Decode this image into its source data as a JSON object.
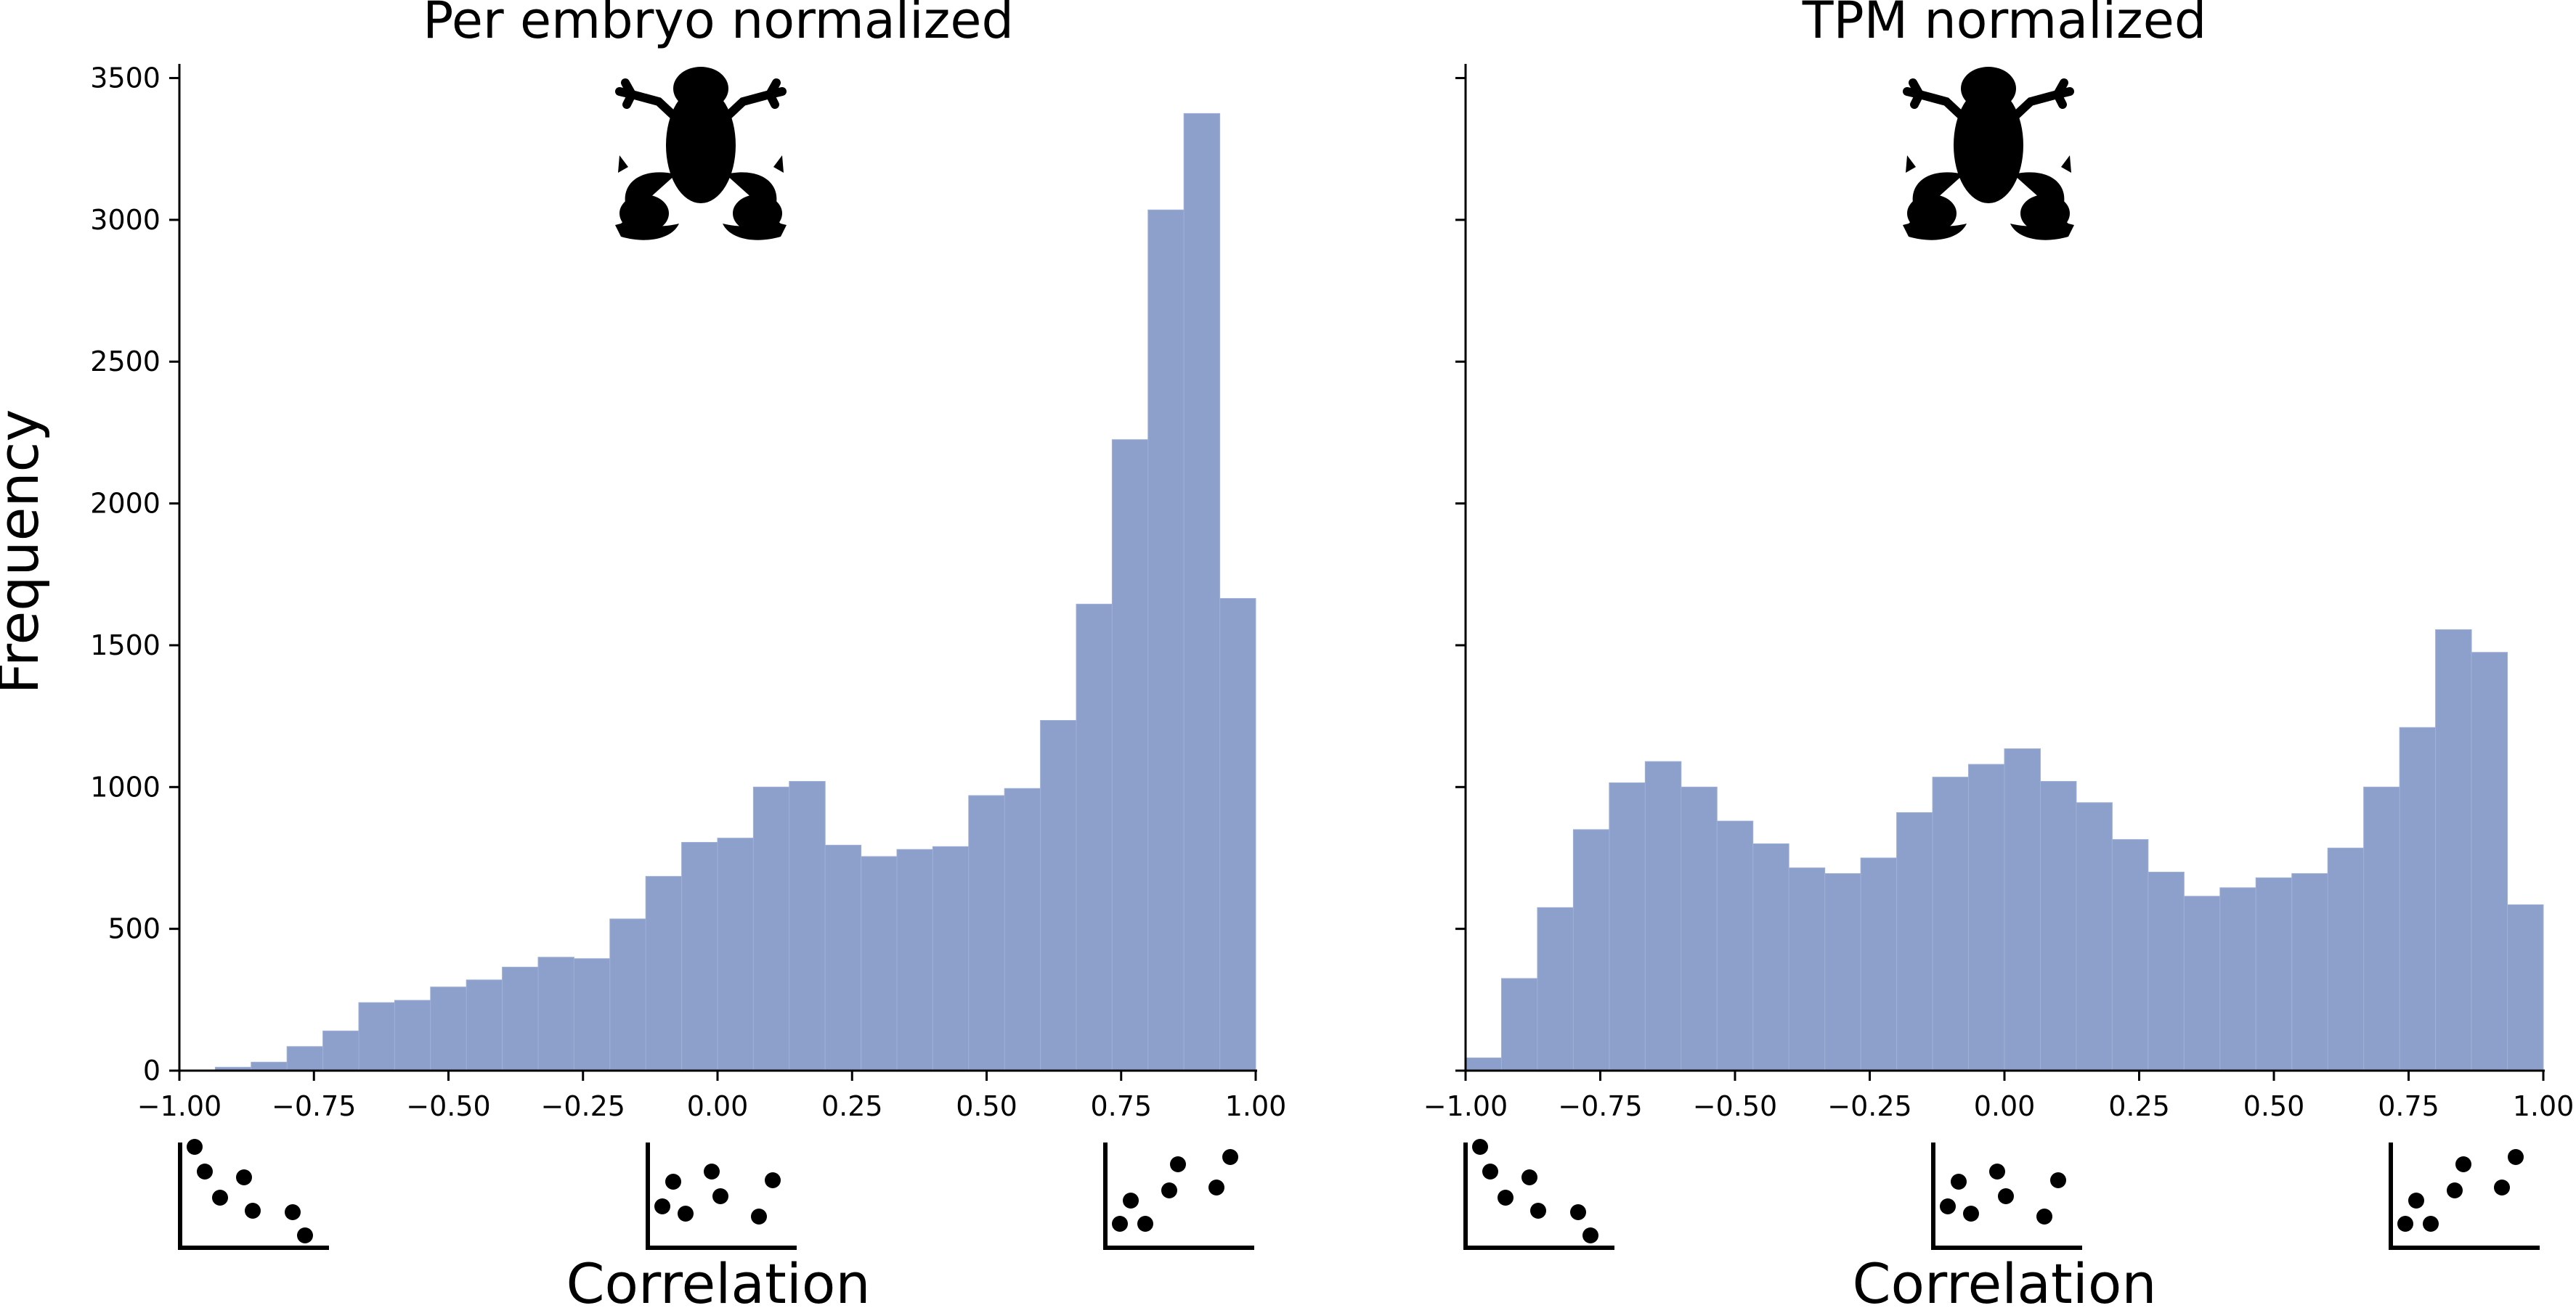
{
  "chart_data": [
    {
      "type": "bar",
      "title": "Per embryo normalized",
      "xlabel": "Correlation",
      "ylabel": "Frequency",
      "xlim": [
        -1.0,
        1.0
      ],
      "ylim": [
        0,
        3550
      ],
      "x_ticks": [
        "−1.00",
        "−0.75",
        "−0.50",
        "−0.25",
        "0.00",
        "0.25",
        "0.50",
        "0.75",
        "1.00"
      ],
      "y_ticks": [
        "0",
        "500",
        "1000",
        "1500",
        "2000",
        "2500",
        "3000",
        "3500"
      ],
      "bin_width": 0.0667,
      "bin_edges_start": -1.0,
      "values": [
        0,
        12,
        30,
        85,
        140,
        240,
        248,
        295,
        320,
        365,
        400,
        395,
        535,
        685,
        805,
        820,
        1000,
        1020,
        795,
        755,
        780,
        790,
        970,
        995,
        1235,
        1645,
        2225,
        3035,
        3375,
        1665
      ],
      "bar_color": "#8da0cb",
      "grid": false,
      "legend": "none"
    },
    {
      "type": "bar",
      "title": "TPM normalized",
      "xlabel": "Correlation",
      "ylabel": "",
      "xlim": [
        -1.0,
        1.0
      ],
      "ylim": [
        0,
        3550
      ],
      "x_ticks": [
        "−1.00",
        "−0.75",
        "−0.50",
        "−0.25",
        "0.00",
        "0.25",
        "0.50",
        "0.75",
        "1.00"
      ],
      "y_ticks": [],
      "bin_width": 0.0667,
      "bin_edges_start": -1.0,
      "values": [
        45,
        325,
        575,
        850,
        1015,
        1090,
        1000,
        880,
        800,
        715,
        695,
        750,
        910,
        1035,
        1080,
        1135,
        1020,
        945,
        815,
        700,
        615,
        645,
        680,
        695,
        785,
        1000,
        1210,
        1555,
        1475,
        585
      ],
      "bar_color": "#8da0cb",
      "grid": false,
      "legend": "none"
    }
  ],
  "icons": {
    "frog": "frog-silhouette-icon",
    "neg": "negative-correlation-scatter-icon",
    "zero": "no-correlation-scatter-icon",
    "pos": "positive-correlation-scatter-icon"
  }
}
